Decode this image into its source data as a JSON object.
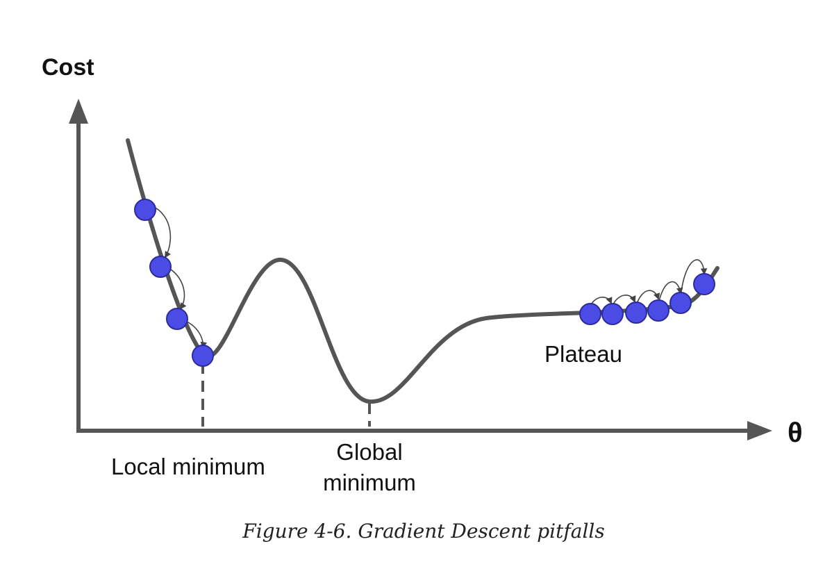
{
  "figure": {
    "y_axis_label": "Cost",
    "x_axis_label": "θ",
    "caption": "Figure 4-6. Gradient Descent pitfalls"
  },
  "annotations": {
    "local_minimum": "Local minimum",
    "global_minimum_line1": "Global",
    "global_minimum_line2": "minimum",
    "plateau": "Plateau"
  },
  "colors": {
    "curve": "#555555",
    "axis": "#555555",
    "ball_fill": "#4b4be6",
    "ball_stroke": "#2c2c99",
    "text": "#111111"
  }
}
